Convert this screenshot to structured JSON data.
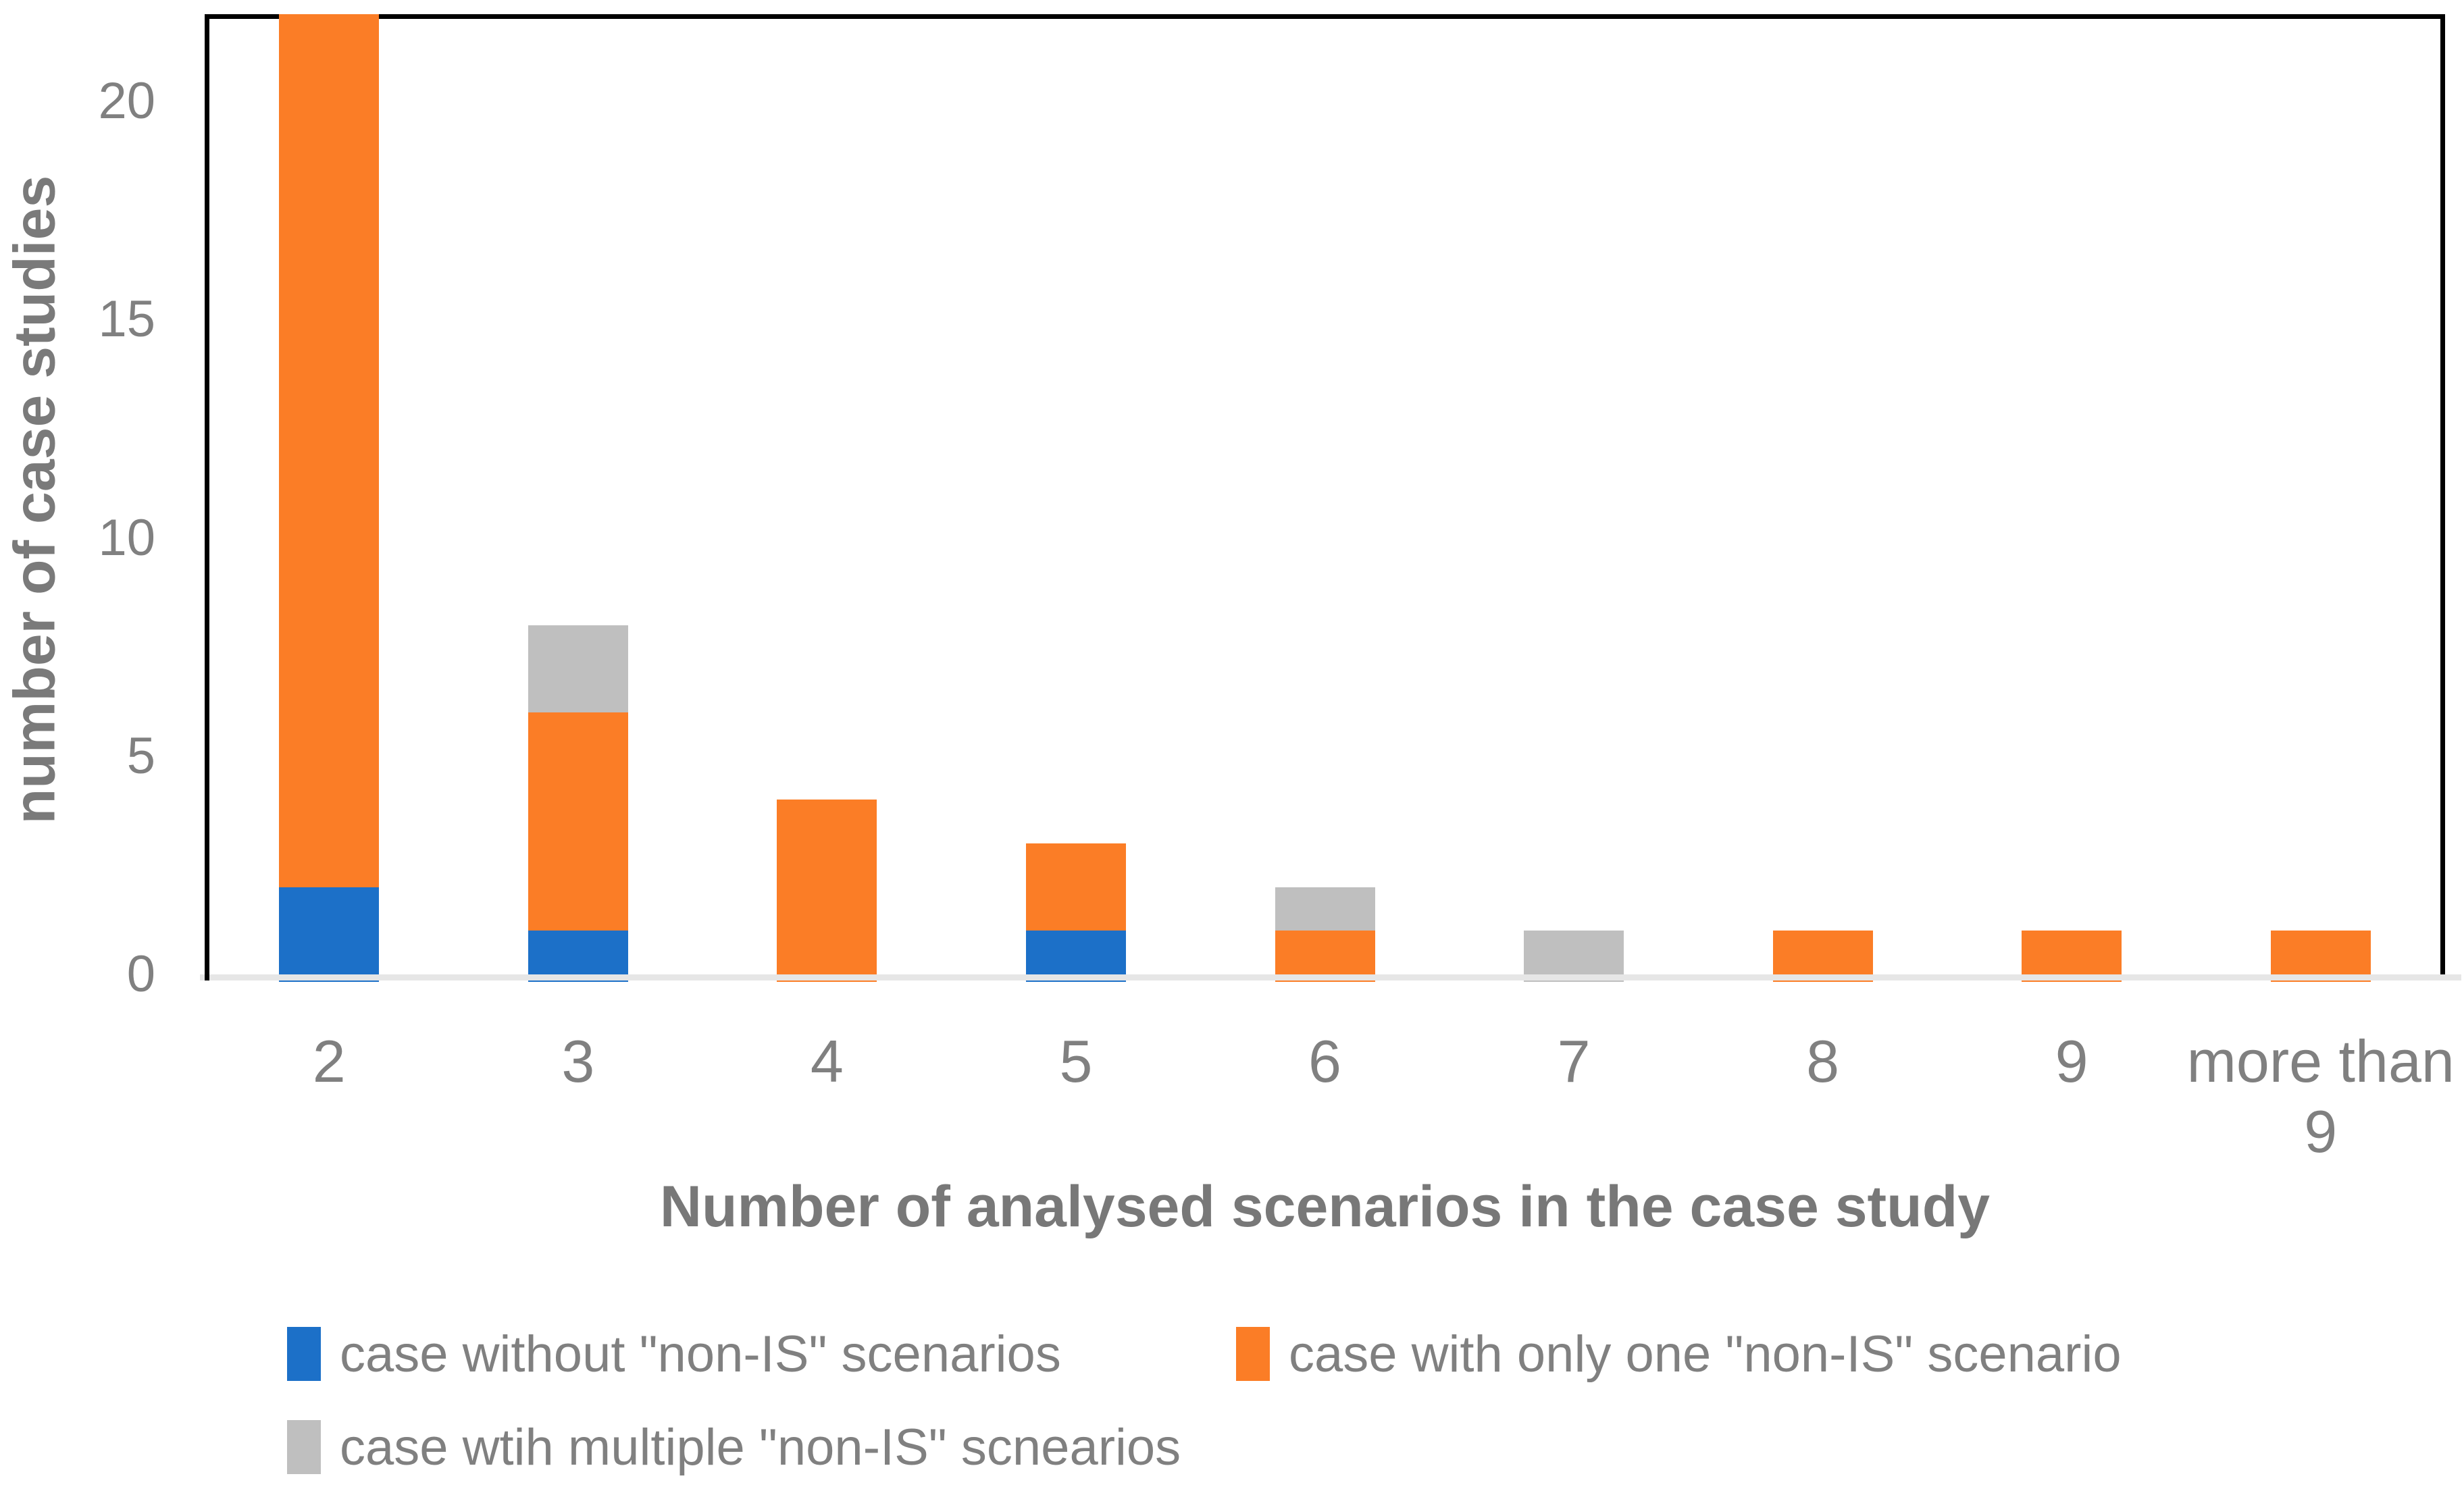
{
  "chart_data": {
    "type": "bar",
    "stacked": true,
    "title": "",
    "xlabel": "Number of analysed scenarios in the case study",
    "ylabel": "number of case studies",
    "categories": [
      "2",
      "3",
      "4",
      "5",
      "6",
      "7",
      "8",
      "9",
      "more than\n9"
    ],
    "series": [
      {
        "name": "case without \"non-IS\" scenarios",
        "color": "#1C70C8",
        "values": [
          2,
          1,
          0,
          1,
          0,
          0,
          0,
          0,
          0
        ]
      },
      {
        "name": "case with only one \"non-IS\" scenario",
        "color": "#FB7D26",
        "values": [
          20,
          5,
          4,
          2,
          1,
          0,
          1,
          1,
          1
        ]
      },
      {
        "name": "case wtih multiple \"non-IS\" scnearios",
        "color": "#BFBFBF",
        "values": [
          0,
          2,
          0,
          0,
          1,
          1,
          0,
          0,
          0
        ]
      }
    ],
    "y_ticks": [
      0,
      5,
      10,
      15,
      20
    ],
    "ylim": [
      0,
      22
    ],
    "gridlines": false,
    "legend_position": "bottom",
    "axis_color": "#000000",
    "baseline_color": "#E6E6E6",
    "tick_text_color": "#808080",
    "title_text_color": "#787878"
  }
}
